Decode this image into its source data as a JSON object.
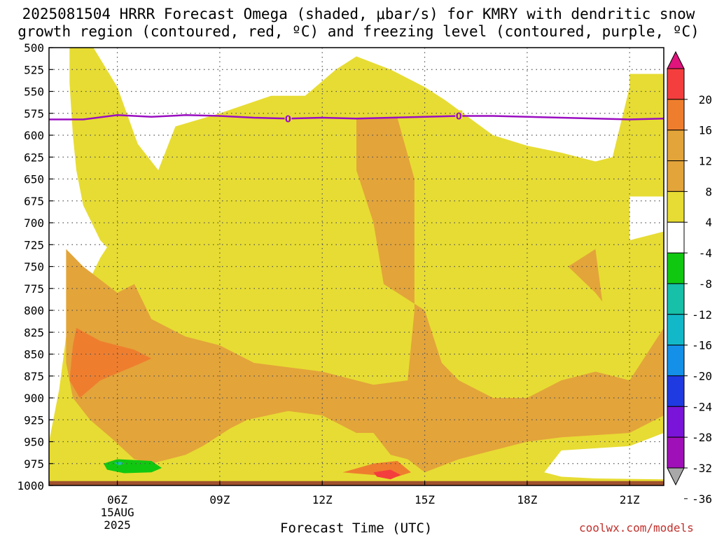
{
  "title": {
    "line1": "2025081504 HRRR Forecast Omega (shaded, μbar/s) for KMRY with dendritic snow",
    "line2": "growth region (contoured, red, ºC) and freezing level (contoured, purple, ºC)"
  },
  "credit": "coolwx.com/models",
  "chart_data": {
    "type": "heatmap",
    "title": "2025081504 HRRR Forecast Omega (shaded, μbar/s) for KMRY with dendritic snow growth region (contoured, red, ºC) and freezing level (contoured, purple, ºC)",
    "xlabel": "Forecast Time (UTC)",
    "ylabel": "",
    "x_range_hours_utc": [
      4,
      22
    ],
    "y_range_mb": [
      500,
      1000
    ],
    "y_axis_inverted": true,
    "grid": true,
    "y_ticks": [
      "500",
      "525",
      "550",
      "575",
      "600",
      "625",
      "650",
      "675",
      "700",
      "725",
      "750",
      "775",
      "800",
      "825",
      "850",
      "875",
      "900",
      "925",
      "950",
      "975",
      "1000"
    ],
    "x_ticks": [
      {
        "label": "06Z",
        "hour": 6,
        "sublabel1": "15AUG",
        "sublabel2": "2025"
      },
      {
        "label": "09Z",
        "hour": 9
      },
      {
        "label": "12Z",
        "hour": 12
      },
      {
        "label": "15Z",
        "hour": 15
      },
      {
        "label": "18Z",
        "hour": 18
      },
      {
        "label": "21Z",
        "hour": 21
      }
    ],
    "colorbar": {
      "position": "right",
      "labels": [
        "20",
        "16",
        "12",
        "8",
        "4",
        "-4",
        "-8",
        "-12",
        "-16",
        "-20",
        "-24",
        "-28",
        "-32",
        "-36"
      ],
      "bins": [
        {
          "range": ">20",
          "color": "#e0147c"
        },
        {
          "range": "16 to 20",
          "color": "#f43e3e"
        },
        {
          "range": "12 to 16",
          "color": "#ee7e2e"
        },
        {
          "range": "8 to 12",
          "color": "#e3a43a"
        },
        {
          "range": "4 to 8",
          "color": "#e3a43a"
        },
        {
          "range": "-4 to 4",
          "color": "#e7dc33"
        },
        {
          "range": "-8 to -4",
          "color": "#ffffff"
        },
        {
          "range": "-12 to -8",
          "color": "#11c811"
        },
        {
          "range": "-16 to -12",
          "color": "#17c0a8"
        },
        {
          "range": "-20 to -16",
          "color": "#13b8c8"
        },
        {
          "range": "-24 to -20",
          "color": "#1490e8"
        },
        {
          "range": "-28 to -24",
          "color": "#1f3ae0"
        },
        {
          "range": "-32 to -28",
          "color": "#7a14d8"
        },
        {
          "range": "-36 to -32",
          "color": "#a010b8"
        },
        {
          "range": "<-36",
          "color": "#a8a8a8"
        }
      ]
    },
    "freezing_level": {
      "contour_label": "0",
      "color": "#9a0ec0",
      "points_hour_mb": [
        [
          4,
          582
        ],
        [
          5,
          582
        ],
        [
          6,
          577
        ],
        [
          7,
          579
        ],
        [
          8,
          577
        ],
        [
          9,
          578
        ],
        [
          10,
          580
        ],
        [
          11,
          581
        ],
        [
          12,
          580
        ],
        [
          13,
          581
        ],
        [
          14,
          580
        ],
        [
          15,
          579
        ],
        [
          16,
          578
        ],
        [
          17,
          578
        ],
        [
          18,
          579
        ],
        [
          19,
          580
        ],
        [
          20,
          581
        ],
        [
          21,
          582
        ],
        [
          22,
          581
        ]
      ],
      "label_hours": [
        11,
        16
      ]
    },
    "omega_regions": [
      {
        "name": "weak-ascent-4-to-8",
        "color": "#e7dc33",
        "polygon_hour_mb": [
          [
            4.6,
            500
          ],
          [
            5.3,
            500
          ],
          [
            6,
            545
          ],
          [
            6.6,
            610
          ],
          [
            7.2,
            640
          ],
          [
            7.7,
            590
          ],
          [
            9,
            575
          ],
          [
            10.5,
            555
          ],
          [
            11.5,
            555
          ],
          [
            12.4,
            525
          ],
          [
            13,
            510
          ],
          [
            14,
            525
          ],
          [
            15,
            545
          ],
          [
            15.6,
            560
          ],
          [
            17,
            600
          ],
          [
            18,
            612
          ],
          [
            19,
            620
          ],
          [
            20,
            630
          ],
          [
            20.5,
            625
          ],
          [
            21,
            545
          ],
          [
            21,
            530
          ],
          [
            22,
            530
          ],
          [
            22,
            670
          ],
          [
            21,
            670
          ],
          [
            21,
            720
          ],
          [
            22,
            710
          ],
          [
            22,
            940
          ],
          [
            21,
            955
          ],
          [
            19,
            960
          ],
          [
            18.5,
            985
          ],
          [
            19,
            990
          ],
          [
            20,
            992
          ],
          [
            22,
            993
          ],
          [
            22,
            1000
          ],
          [
            4,
            1000
          ],
          [
            4,
            950
          ],
          [
            4.3,
            890
          ],
          [
            4.5,
            830
          ],
          [
            5,
            780
          ],
          [
            5.5,
            740
          ],
          [
            6,
            710
          ],
          [
            6.5,
            702
          ],
          [
            9,
            700
          ],
          [
            12,
            700
          ],
          [
            13,
            750
          ],
          [
            15,
            800
          ],
          [
            15,
            830
          ],
          [
            14,
            840
          ],
          [
            13,
            850
          ],
          [
            10.5,
            760
          ],
          [
            10,
            740
          ],
          [
            9.5,
            760
          ],
          [
            9,
            790
          ],
          [
            8,
            810
          ],
          [
            7,
            820
          ],
          [
            6.5,
            790
          ],
          [
            6,
            740
          ],
          [
            5.5,
            720
          ],
          [
            5,
            680
          ],
          [
            4.8,
            640
          ],
          [
            4.7,
            600
          ],
          [
            4.6,
            540
          ]
        ]
      },
      {
        "name": "moderate-ascent-8-to-12",
        "color": "#e3a43a",
        "polygon_hour_mb": [
          [
            4.5,
            730
          ],
          [
            5,
            750
          ],
          [
            6,
            780
          ],
          [
            6.5,
            770
          ],
          [
            7,
            810
          ],
          [
            8,
            830
          ],
          [
            9,
            840
          ],
          [
            10,
            860
          ],
          [
            12,
            870
          ],
          [
            13,
            880
          ],
          [
            13.5,
            885
          ],
          [
            14.5,
            880
          ],
          [
            14.7,
            800
          ],
          [
            14.7,
            650
          ],
          [
            14.2,
            580
          ],
          [
            13,
            580
          ],
          [
            13,
            640
          ],
          [
            13.5,
            700
          ],
          [
            13.8,
            770
          ],
          [
            15,
            800
          ],
          [
            15.5,
            860
          ],
          [
            16,
            880
          ],
          [
            17,
            900
          ],
          [
            18,
            900
          ],
          [
            19,
            880
          ],
          [
            20,
            870
          ],
          [
            21,
            880
          ],
          [
            21.5,
            850
          ],
          [
            22,
            820
          ],
          [
            22,
            920
          ],
          [
            21,
            940
          ],
          [
            19,
            945
          ],
          [
            18,
            950
          ],
          [
            17,
            960
          ],
          [
            16,
            970
          ],
          [
            15,
            985
          ],
          [
            14.5,
            970
          ],
          [
            14,
            965
          ],
          [
            13.5,
            940
          ],
          [
            13,
            940
          ],
          [
            12,
            920
          ],
          [
            11,
            915
          ],
          [
            9.8,
            925
          ],
          [
            9.3,
            935
          ],
          [
            8.5,
            955
          ],
          [
            8,
            965
          ],
          [
            7,
            975
          ],
          [
            6.5,
            970
          ],
          [
            5.8,
            945
          ],
          [
            5.2,
            925
          ],
          [
            4.7,
            900
          ],
          [
            4.5,
            860
          ],
          [
            4.5,
            790
          ]
        ]
      },
      {
        "name": "moderate-ascent-east",
        "color": "#e3a43a",
        "polygon_hour_mb": [
          [
            19.2,
            750
          ],
          [
            20,
            730
          ],
          [
            20.2,
            790
          ],
          [
            20,
            780
          ]
        ]
      },
      {
        "name": "strong-ascent-12-to-16",
        "color": "#ee7e2e",
        "polygon_hour_mb": [
          [
            4.8,
            820
          ],
          [
            5.5,
            835
          ],
          [
            6.5,
            845
          ],
          [
            7,
            855
          ],
          [
            6.6,
            862
          ],
          [
            5.5,
            880
          ],
          [
            4.9,
            900
          ],
          [
            4.6,
            880
          ],
          [
            4.7,
            840
          ]
        ]
      },
      {
        "name": "strong-ascent-low-level",
        "color": "#ee7e2e",
        "polygon_hour_mb": [
          [
            12.6,
            985
          ],
          [
            13.5,
            975
          ],
          [
            14.2,
            972
          ],
          [
            14.6,
            985
          ],
          [
            14.2,
            990
          ],
          [
            13.5,
            988
          ]
        ]
      },
      {
        "name": "very-strong-ascent-16-to-20",
        "color": "#f43e3e",
        "polygon_hour_mb": [
          [
            13.5,
            985
          ],
          [
            14,
            982
          ],
          [
            14.3,
            988
          ],
          [
            14,
            993
          ],
          [
            13.6,
            990
          ]
        ]
      },
      {
        "name": "descent-minus-12-to-minus-8",
        "color": "#11c811",
        "polygon_hour_mb": [
          [
            5.6,
            975
          ],
          [
            6,
            970
          ],
          [
            7,
            972
          ],
          [
            7.3,
            980
          ],
          [
            7,
            985
          ],
          [
            6.2,
            986
          ],
          [
            5.7,
            982
          ]
        ]
      },
      {
        "name": "descent-minus-16-to-minus-12",
        "color": "#17c0a8",
        "polygon_hour_mb": [
          [
            5.9,
            974
          ],
          [
            6.1,
            973
          ],
          [
            6.2,
            975
          ],
          [
            6.05,
            977
          ]
        ]
      }
    ],
    "ground_layer": {
      "color": "#a0522d",
      "from_mb": 995,
      "to_mb": 1000
    }
  }
}
